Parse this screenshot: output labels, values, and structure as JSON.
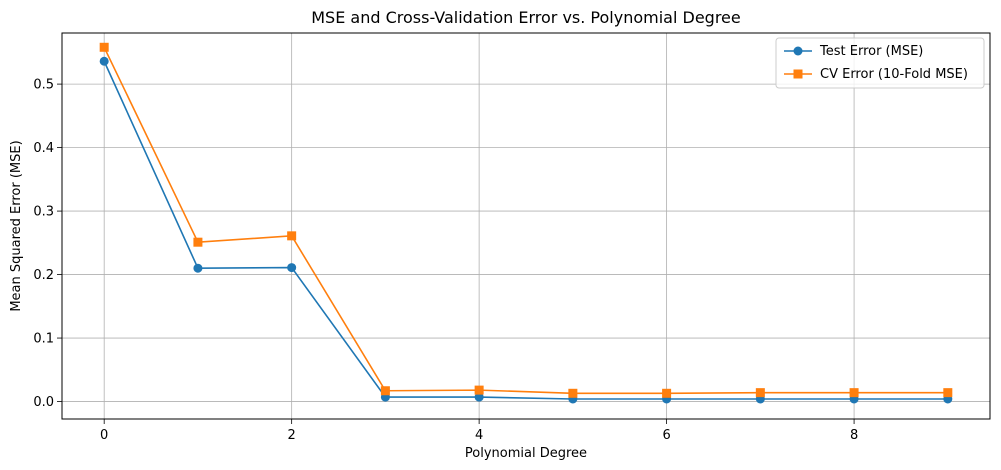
{
  "chart_data": {
    "type": "line",
    "title": "MSE and Cross-Validation Error vs. Polynomial Degree",
    "xlabel": "Polynomial Degree",
    "ylabel": "Mean Squared Error (MSE)",
    "x": [
      0,
      1,
      2,
      3,
      4,
      5,
      6,
      7,
      8,
      9
    ],
    "xlim": [
      -0.45,
      9.45
    ],
    "ylim": [
      -0.0275,
      0.5805
    ],
    "xticks": [
      0,
      2,
      4,
      6,
      8
    ],
    "yticks": [
      0.0,
      0.1,
      0.2,
      0.3,
      0.4,
      0.5
    ],
    "xtick_labels": [
      "0",
      "2",
      "4",
      "6",
      "8"
    ],
    "ytick_labels": [
      "0.0",
      "0.1",
      "0.2",
      "0.3",
      "0.4",
      "0.5"
    ],
    "grid": true,
    "legend_position": "top-right",
    "series": [
      {
        "name": "Test Error (MSE)",
        "color": "#1f77b4",
        "marker": "circle",
        "values": [
          0.536,
          0.21,
          0.211,
          0.007,
          0.007,
          0.004,
          0.004,
          0.004,
          0.004,
          0.004
        ]
      },
      {
        "name": "CV Error (10-Fold MSE)",
        "color": "#ff7f0e",
        "marker": "square",
        "values": [
          0.558,
          0.251,
          0.261,
          0.017,
          0.018,
          0.013,
          0.013,
          0.014,
          0.014,
          0.014
        ]
      }
    ]
  }
}
